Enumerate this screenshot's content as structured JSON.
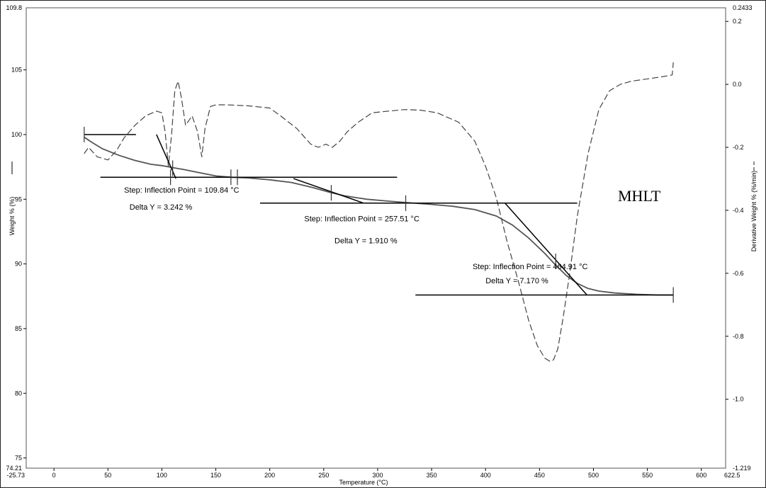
{
  "chart_data": {
    "type": "line",
    "xlabel": "Temperature (°C)",
    "ylabel_left": "Weight % (%)",
    "ylabel_right": "Derivative Weight % (%/min)",
    "xlim": [
      -25.73,
      622.5
    ],
    "ylim_left": [
      74.21,
      109.8
    ],
    "ylim_right": [
      -1.219,
      0.2433
    ],
    "x_ticks": [
      0,
      50,
      100,
      150,
      200,
      250,
      300,
      350,
      400,
      450,
      500,
      550,
      600
    ],
    "x_end_labels": [
      "-25.73",
      "622.5"
    ],
    "y_left_ticks": [
      75,
      80,
      85,
      90,
      95,
      100,
      105
    ],
    "y_left_end_labels": [
      "74.21",
      "109.8"
    ],
    "y_right_ticks": [
      -1.0,
      -0.8,
      -0.6,
      -0.4,
      -0.2,
      0.0,
      0.2
    ],
    "y_right_tick_labels": [
      "-1.0",
      "-0.8",
      "-0.6",
      "-0.4",
      "-0.2",
      "0.0",
      "0.2"
    ],
    "y_right_end_labels": [
      "-1.219",
      "0.2433"
    ],
    "sample_label": "MHLT",
    "grid": false,
    "series": [
      {
        "key": "weight",
        "axis": "left",
        "style": "solid",
        "color": "#555555",
        "x": [
          28,
          35,
          45,
          60,
          75,
          90,
          100,
          110,
          120,
          135,
          150,
          165,
          180,
          200,
          220,
          240,
          255,
          270,
          290,
          310,
          330,
          350,
          370,
          390,
          410,
          425,
          440,
          455,
          465,
          475,
          485,
          495,
          505,
          520,
          540,
          560,
          574
        ],
        "y": [
          99.8,
          99.4,
          98.9,
          98.4,
          98.0,
          97.7,
          97.6,
          97.45,
          97.3,
          97.05,
          96.8,
          96.7,
          96.65,
          96.5,
          96.3,
          95.9,
          95.55,
          95.25,
          95.0,
          94.85,
          94.72,
          94.6,
          94.45,
          94.2,
          93.7,
          93.0,
          92.0,
          90.8,
          89.9,
          89.1,
          88.5,
          88.1,
          87.9,
          87.75,
          87.65,
          87.6,
          87.6
        ]
      },
      {
        "key": "derivative",
        "axis": "right",
        "style": "dashed",
        "color": "#444444",
        "x": [
          28,
          32,
          40,
          50,
          58,
          65,
          75,
          85,
          95,
          100,
          103,
          106,
          109,
          112,
          115,
          118,
          122,
          128,
          133,
          137,
          140,
          145,
          150,
          160,
          180,
          200,
          210,
          225,
          238,
          245,
          252,
          258,
          265,
          272,
          282,
          295,
          310,
          325,
          340,
          355,
          375,
          390,
          400,
          410,
          420,
          430,
          440,
          448,
          455,
          460,
          463,
          467,
          472,
          478,
          485,
          495,
          505,
          515,
          525,
          535,
          545,
          555,
          565,
          573,
          574
        ],
        "y": [
          -0.22,
          -0.2,
          -0.23,
          -0.24,
          -0.21,
          -0.17,
          -0.13,
          -0.1,
          -0.085,
          -0.09,
          -0.15,
          -0.26,
          -0.16,
          -0.02,
          0.01,
          -0.04,
          -0.13,
          -0.1,
          -0.15,
          -0.23,
          -0.14,
          -0.07,
          -0.065,
          -0.065,
          -0.068,
          -0.075,
          -0.1,
          -0.14,
          -0.19,
          -0.2,
          -0.19,
          -0.2,
          -0.18,
          -0.15,
          -0.12,
          -0.09,
          -0.085,
          -0.08,
          -0.082,
          -0.09,
          -0.12,
          -0.18,
          -0.26,
          -0.36,
          -0.5,
          -0.62,
          -0.75,
          -0.83,
          -0.87,
          -0.88,
          -0.875,
          -0.84,
          -0.74,
          -0.6,
          -0.42,
          -0.22,
          -0.08,
          -0.02,
          0.0,
          0.01,
          0.015,
          0.02,
          0.025,
          0.03,
          0.07
        ]
      }
    ],
    "annotations": [
      {
        "text": "Step: Inflection Point = 109.84 °C",
        "x": 65,
        "y": 95.5
      },
      {
        "text": "Delta Y = 3.242 %",
        "x": 70,
        "y": 94.2
      },
      {
        "text": "Step: Inflection Point = 257.51 °C",
        "x": 232,
        "y": 93.3
      },
      {
        "text": "Delta Y = 1.910 %",
        "x": 260,
        "y": 91.6
      },
      {
        "text": "Step: Inflection Point = 464.91 °C",
        "x": 388,
        "y": 89.6
      },
      {
        "text": "Delta Y = 7.170 %",
        "x": 400,
        "y": 88.5
      }
    ],
    "construction_lines": [
      {
        "x1": 28,
        "y1": 100.0,
        "x2": 76,
        "y2": 100.0
      },
      {
        "x1": 43,
        "y1": 96.7,
        "x2": 318,
        "y2": 96.7
      },
      {
        "x1": 95,
        "y1": 100.0,
        "x2": 113,
        "y2": 96.6
      },
      {
        "x1": 191,
        "y1": 94.7,
        "x2": 485,
        "y2": 94.7
      },
      {
        "x1": 222,
        "y1": 96.6,
        "x2": 287,
        "y2": 94.7
      },
      {
        "x1": 335,
        "y1": 87.6,
        "x2": 574,
        "y2": 87.6
      },
      {
        "x1": 418,
        "y1": 94.7,
        "x2": 494,
        "y2": 87.6
      }
    ],
    "step_markers": [
      {
        "x": 28,
        "y": 100.0
      },
      {
        "x": 108,
        "y": 96.7
      },
      {
        "x": 110,
        "y": 97.4
      },
      {
        "x": 164,
        "y": 96.7
      },
      {
        "x": 170,
        "y": 96.7
      },
      {
        "x": 257,
        "y": 95.5
      },
      {
        "x": 326,
        "y": 94.7
      },
      {
        "x": 465,
        "y": 90.2
      },
      {
        "x": 574,
        "y": 87.6
      }
    ]
  }
}
